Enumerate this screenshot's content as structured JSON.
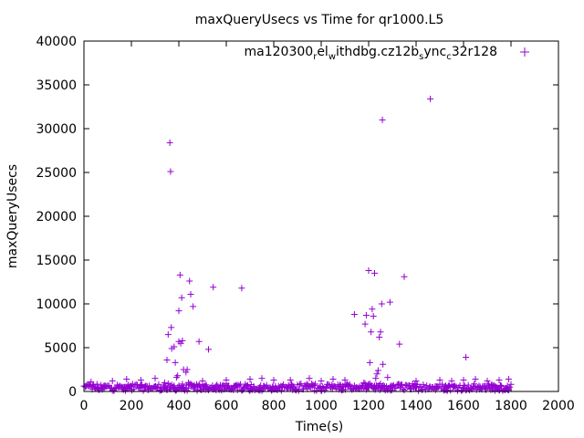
{
  "chart_data": {
    "type": "scatter",
    "title": "maxQueryUsecs vs Time for qr1000.L5",
    "xlabel": "Time(s)",
    "ylabel": "maxQueryUsecs",
    "xlim": [
      0,
      2000
    ],
    "ylim": [
      0,
      40000
    ],
    "xticks": [
      "0",
      "200",
      "400",
      "600",
      "800",
      "1000",
      "1200",
      "1400",
      "1600",
      "1800",
      "2000"
    ],
    "yticks": [
      "0",
      "5000",
      "10000",
      "15000",
      "20000",
      "25000",
      "30000",
      "35000",
      "40000"
    ],
    "legend": {
      "placement": "top-right",
      "parts": [
        {
          "text": "ma120300",
          "sub": false
        },
        {
          "text": "r",
          "sub": true
        },
        {
          "text": "el",
          "sub": false
        },
        {
          "text": "w",
          "sub": true
        },
        {
          "text": "ithdbg.cz12b",
          "sub": false
        },
        {
          "text": "s",
          "sub": true
        },
        {
          "text": "ync",
          "sub": false
        },
        {
          "text": "c",
          "sub": true
        },
        {
          "text": "32r128",
          "sub": false
        }
      ]
    },
    "marker": "+",
    "color": "#9400d3",
    "baseline": {
      "x_start": 0,
      "x_end": 1800,
      "x_step": 5,
      "y_range": [
        80,
        900
      ]
    },
    "outliers": [
      [
        30,
        1100
      ],
      [
        120,
        1200
      ],
      [
        180,
        1400
      ],
      [
        240,
        1300
      ],
      [
        300,
        1500
      ],
      [
        340,
        1000
      ],
      [
        350,
        3600
      ],
      [
        355,
        6500
      ],
      [
        362,
        28400
      ],
      [
        365,
        25100
      ],
      [
        368,
        7300
      ],
      [
        370,
        4900
      ],
      [
        380,
        5100
      ],
      [
        385,
        3300
      ],
      [
        390,
        1600
      ],
      [
        395,
        1800
      ],
      [
        400,
        5700
      ],
      [
        400,
        9200
      ],
      [
        405,
        13300
      ],
      [
        408,
        5500
      ],
      [
        412,
        10700
      ],
      [
        415,
        5800
      ],
      [
        420,
        2500
      ],
      [
        430,
        2200
      ],
      [
        435,
        2500
      ],
      [
        440,
        1000
      ],
      [
        445,
        12600
      ],
      [
        450,
        11100
      ],
      [
        460,
        9700
      ],
      [
        485,
        5700
      ],
      [
        500,
        1200
      ],
      [
        525,
        4800
      ],
      [
        545,
        11900
      ],
      [
        600,
        1300
      ],
      [
        665,
        11800
      ],
      [
        700,
        1400
      ],
      [
        750,
        1500
      ],
      [
        800,
        1300
      ],
      [
        870,
        1300
      ],
      [
        950,
        1500
      ],
      [
        1000,
        1200
      ],
      [
        1050,
        1400
      ],
      [
        1100,
        1300
      ],
      [
        1140,
        8800
      ],
      [
        1180,
        1000
      ],
      [
        1185,
        7700
      ],
      [
        1190,
        8700
      ],
      [
        1200,
        13800
      ],
      [
        1205,
        3300
      ],
      [
        1210,
        6800
      ],
      [
        1215,
        9400
      ],
      [
        1220,
        8600
      ],
      [
        1225,
        13500
      ],
      [
        1230,
        1500
      ],
      [
        1235,
        2000
      ],
      [
        1240,
        2400
      ],
      [
        1245,
        6200
      ],
      [
        1250,
        6800
      ],
      [
        1255,
        10000
      ],
      [
        1258,
        31000
      ],
      [
        1260,
        3100
      ],
      [
        1280,
        1600
      ],
      [
        1290,
        10200
      ],
      [
        1330,
        5400
      ],
      [
        1350,
        13100
      ],
      [
        1400,
        1200
      ],
      [
        1460,
        33400
      ],
      [
        1500,
        1300
      ],
      [
        1550,
        1200
      ],
      [
        1600,
        1300
      ],
      [
        1610,
        3900
      ],
      [
        1650,
        1400
      ],
      [
        1700,
        1200
      ],
      [
        1750,
        1300
      ],
      [
        1790,
        1400
      ]
    ]
  }
}
